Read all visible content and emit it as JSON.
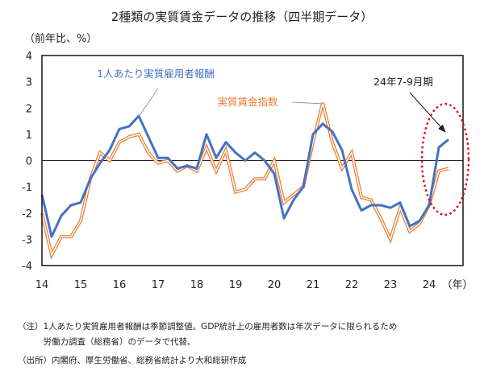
{
  "chart_data": {
    "type": "line",
    "title": "2種類の実質賃金データの推移（四半期データ）",
    "ylabel": "（前年比、%）",
    "xlabel": "（年）",
    "ylim": [
      -4,
      4
    ],
    "yticks": [
      4,
      3,
      2,
      1,
      0,
      -1,
      -2,
      -3,
      -4
    ],
    "xlim": [
      2014.0,
      2024.875
    ],
    "xticks": [
      {
        "value": 2014,
        "label": "14"
      },
      {
        "value": 2015,
        "label": "15"
      },
      {
        "value": 2016,
        "label": "16"
      },
      {
        "value": 2017,
        "label": "17"
      },
      {
        "value": 2018,
        "label": "18"
      },
      {
        "value": 2019,
        "label": "19"
      },
      {
        "value": 2020,
        "label": "20"
      },
      {
        "value": 2021,
        "label": "21"
      },
      {
        "value": 2022,
        "label": "22"
      },
      {
        "value": 2023,
        "label": "23"
      },
      {
        "value": 2024,
        "label": "24"
      }
    ],
    "grid": false,
    "zero_line": true,
    "series": [
      {
        "name": "1人あたり実質雇用者報酬",
        "color": "#4472C4",
        "x": [
          2014.0,
          2014.25,
          2014.5,
          2014.75,
          2015.0,
          2015.25,
          2015.5,
          2015.75,
          2016.0,
          2016.25,
          2016.5,
          2016.75,
          2017.0,
          2017.25,
          2017.5,
          2017.75,
          2018.0,
          2018.25,
          2018.5,
          2018.75,
          2019.0,
          2019.25,
          2019.5,
          2019.75,
          2020.0,
          2020.25,
          2020.5,
          2020.75,
          2021.0,
          2021.25,
          2021.5,
          2021.75,
          2022.0,
          2022.25,
          2022.5,
          2022.75,
          2023.0,
          2023.25,
          2023.5,
          2023.75,
          2024.0,
          2024.25,
          2024.5
        ],
        "y": [
          -1.3,
          -2.9,
          -2.1,
          -1.7,
          -1.6,
          -0.7,
          -0.1,
          0.4,
          1.2,
          1.3,
          1.7,
          0.9,
          0.1,
          0.1,
          -0.3,
          -0.2,
          -0.3,
          1.0,
          0.1,
          0.7,
          0.3,
          0.0,
          0.3,
          0.0,
          -0.5,
          -2.2,
          -1.5,
          -1.0,
          1.0,
          1.4,
          1.1,
          0.4,
          -1.1,
          -1.9,
          -1.7,
          -1.7,
          -1.8,
          -1.6,
          -2.5,
          -2.3,
          -1.7,
          0.5,
          0.8
        ]
      },
      {
        "name": "実質賃金指数",
        "color": "#ED7D31",
        "x": [
          2014.0,
          2014.25,
          2014.5,
          2014.75,
          2015.0,
          2015.25,
          2015.5,
          2015.75,
          2016.0,
          2016.25,
          2016.5,
          2016.75,
          2017.0,
          2017.25,
          2017.5,
          2017.75,
          2018.0,
          2018.25,
          2018.5,
          2018.75,
          2019.0,
          2019.25,
          2019.5,
          2019.75,
          2020.0,
          2020.25,
          2020.5,
          2020.75,
          2021.0,
          2021.25,
          2021.5,
          2021.75,
          2022.0,
          2022.25,
          2022.5,
          2022.75,
          2023.0,
          2023.25,
          2023.5,
          2023.75,
          2024.0,
          2024.25,
          2024.5
        ],
        "y": [
          -2.0,
          -3.6,
          -2.9,
          -2.9,
          -2.3,
          -0.7,
          0.3,
          0.0,
          0.7,
          0.9,
          1.0,
          0.3,
          -0.1,
          0.0,
          -0.4,
          -0.2,
          -0.4,
          0.5,
          -0.4,
          0.4,
          -1.2,
          -1.1,
          -0.7,
          -0.7,
          0.0,
          -1.6,
          -1.3,
          -1.0,
          0.7,
          2.2,
          0.7,
          -0.3,
          0.3,
          -1.4,
          -1.5,
          -2.2,
          -3.0,
          -1.8,
          -2.7,
          -2.4,
          -1.7,
          -0.4,
          -0.3
        ]
      }
    ],
    "annotations": {
      "series1_label": "1人あたり実質雇用者報酬",
      "series2_label": "実質賃金指数",
      "highlight_label": "24年7-9月期"
    }
  },
  "notes": [
    "（注）1人あたり実質雇用者報酬は季節調整値。GDP統計上の雇用者数は年次データに限られるため",
    "　　　労働力調査（総務省）のデータで代替。",
    "（出所）内閣府、厚生労働省、総務省統計より大和総研作成"
  ]
}
